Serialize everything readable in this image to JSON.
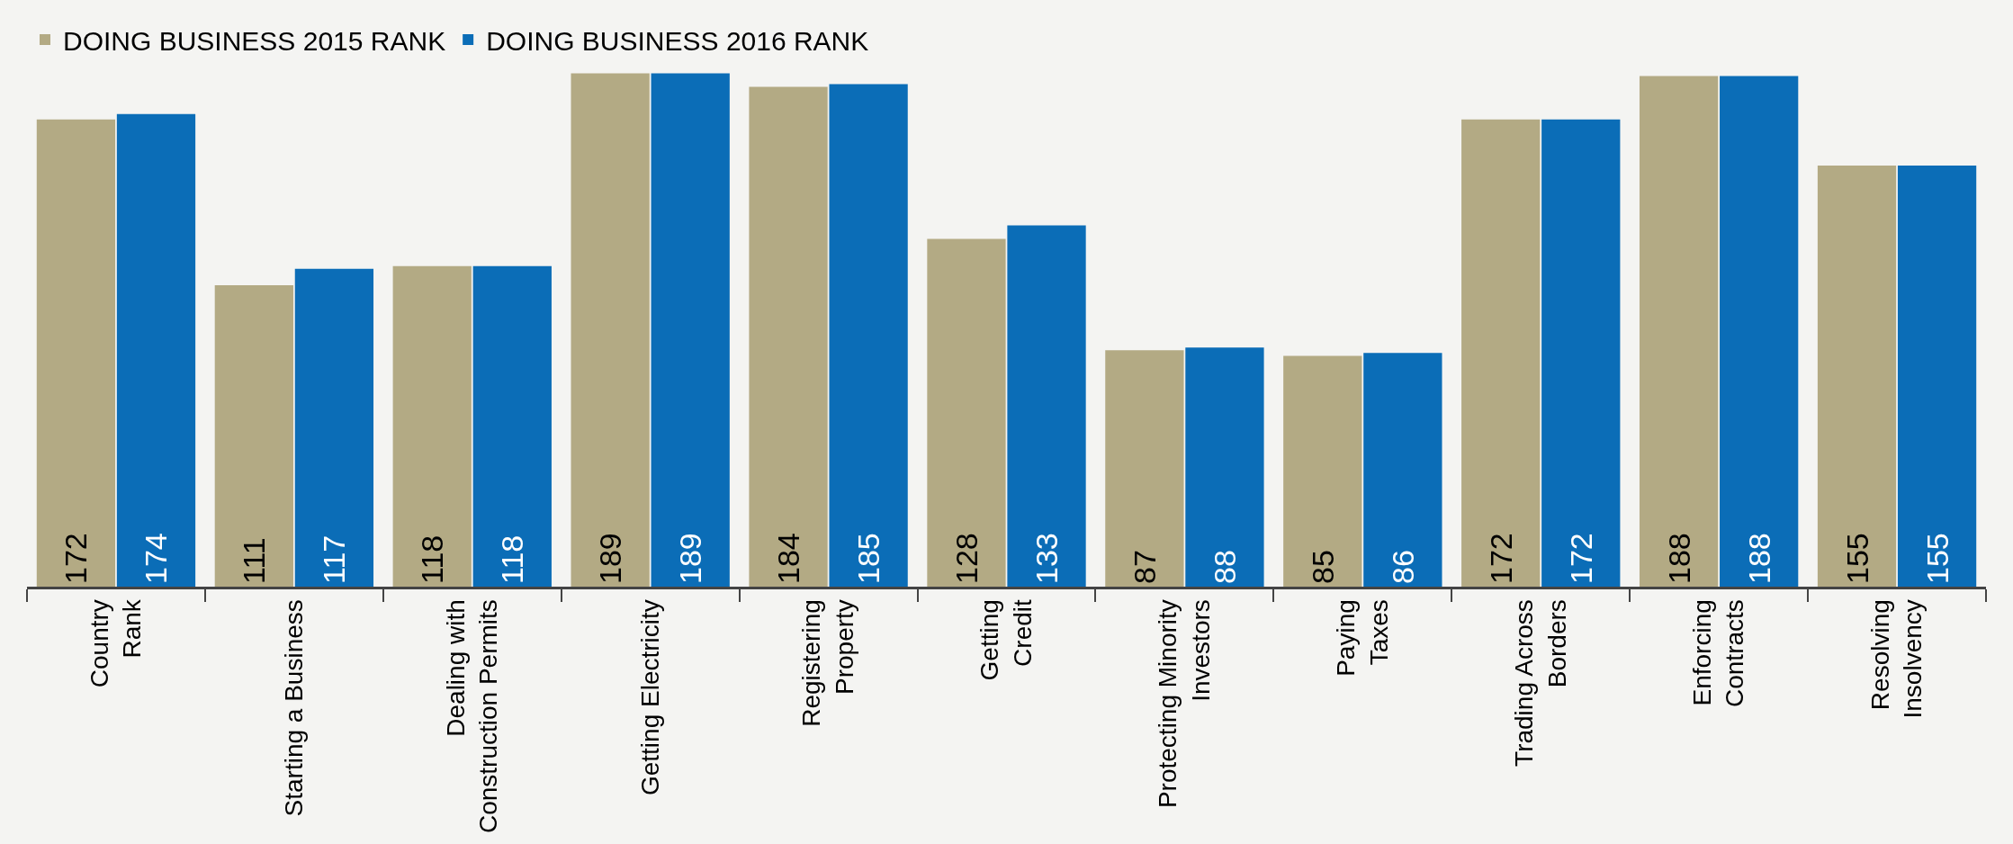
{
  "chart_data": {
    "type": "bar",
    "categories": [
      "Country\nRank",
      "Starting a Business",
      "Dealing with\nConstruction Permits",
      "Getting Electricity",
      "Registering\nProperty",
      "Getting\nCredit",
      "Protecting Minority\nInvestors",
      "Paying\nTaxes",
      "Trading Across\nBorders",
      "Enforcing\nContracts",
      "Resolving\nInsolvency"
    ],
    "series": [
      {
        "name": "DOING BUSINESS 2015 RANK",
        "color": "#b3aa84",
        "values": [
          172,
          111,
          118,
          189,
          184,
          128,
          87,
          85,
          172,
          188,
          155
        ]
      },
      {
        "name": "DOING BUSINESS 2016 RANK",
        "color": "#0b6db7",
        "values": [
          174,
          117,
          118,
          189,
          185,
          133,
          88,
          86,
          172,
          188,
          155
        ]
      }
    ],
    "data_labels": true,
    "legend": "top left",
    "grid": false
  }
}
